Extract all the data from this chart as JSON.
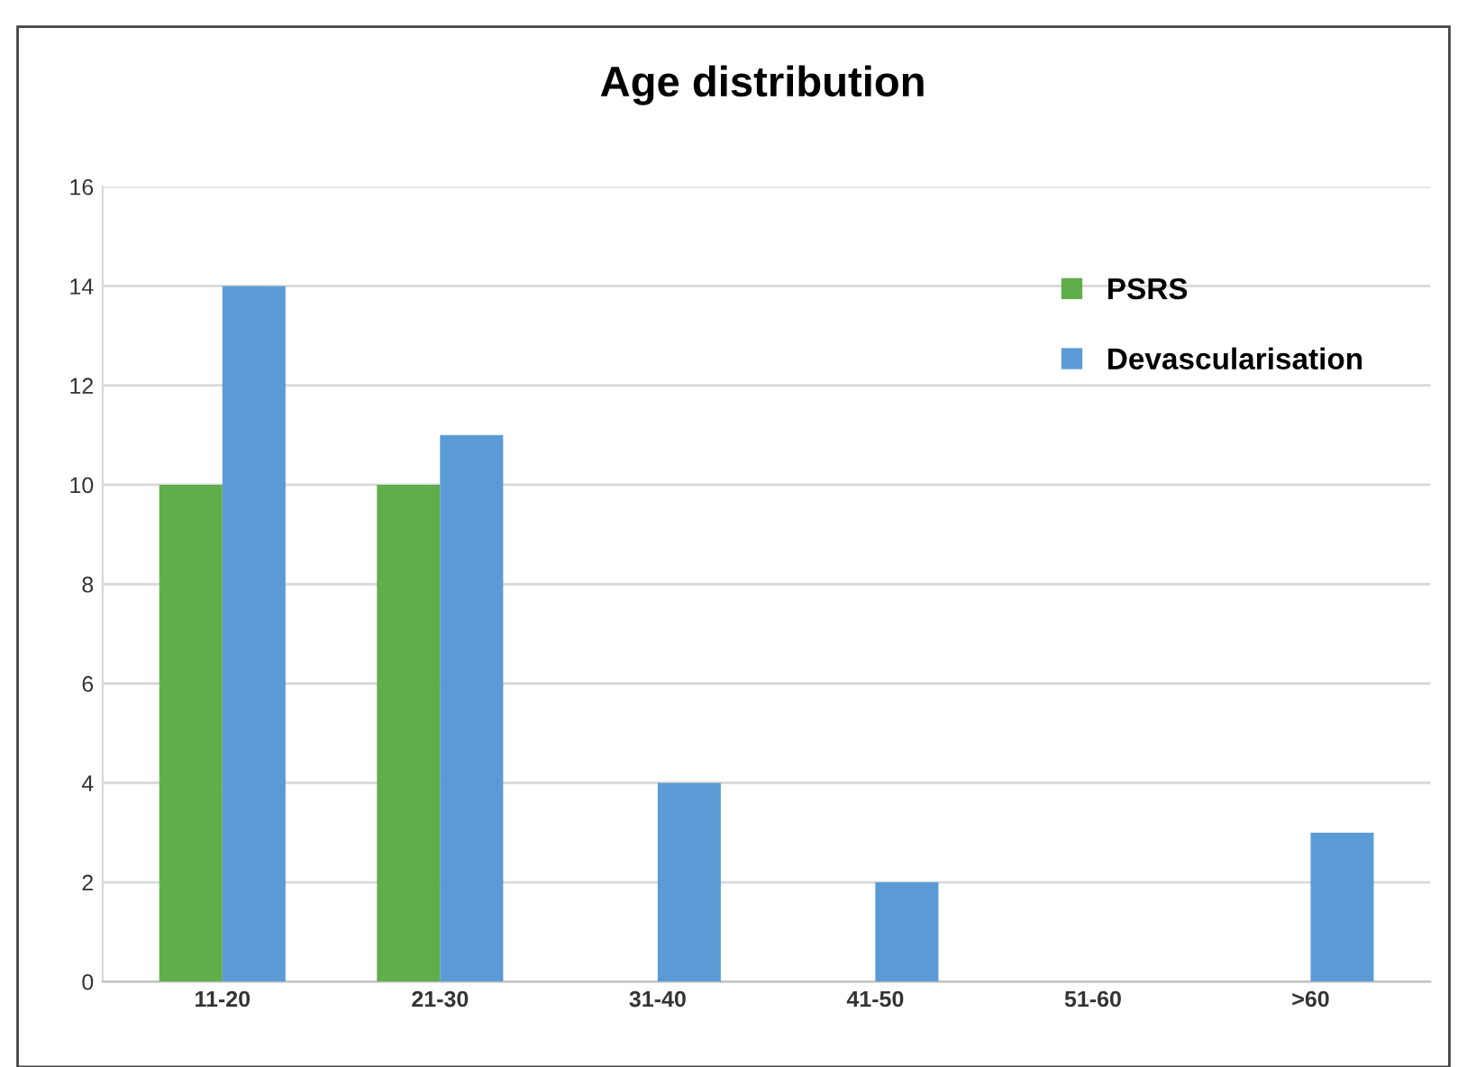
{
  "chart_data": {
    "type": "bar",
    "title": "Age distribution",
    "categories": [
      "11-20",
      "21-30",
      "31-40",
      "41-50",
      "51-60",
      ">60"
    ],
    "series": [
      {
        "name": "PSRS",
        "color": "#5fae4a",
        "values": [
          10,
          10,
          0,
          0,
          0,
          0
        ]
      },
      {
        "name": "Devascularisation",
        "color": "#5b9bd5",
        "values": [
          14,
          11,
          4,
          2,
          0,
          3
        ]
      }
    ],
    "ylim": [
      0,
      16
    ],
    "yticks": [
      0,
      2,
      4,
      6,
      8,
      10,
      12,
      14,
      16
    ],
    "grid": "y",
    "legend": "top right"
  }
}
